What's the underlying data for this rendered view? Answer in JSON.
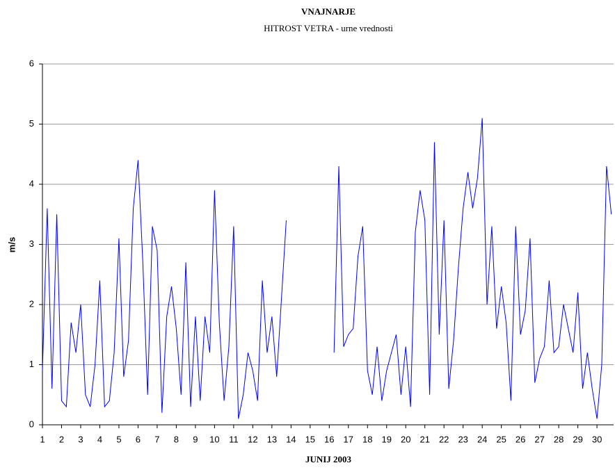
{
  "chart_data": {
    "type": "line",
    "title": "VNAJNARJE",
    "subtitle": "HITROST VETRA - urne vrednosti",
    "y_label": "m/s",
    "x_label": "JUNIJ 2003",
    "color": "#0000ff",
    "grid": true,
    "xlim": [
      1,
      30.87
    ],
    "ylim": [
      0,
      6
    ],
    "xticks": [
      1,
      2,
      3,
      4,
      5,
      6,
      7,
      8,
      9,
      10,
      11,
      12,
      13,
      14,
      15,
      16,
      17,
      18,
      19,
      20,
      21,
      22,
      23,
      24,
      25,
      26,
      27,
      28,
      29,
      30
    ],
    "yticks": [
      0,
      1,
      2,
      3,
      4,
      5,
      6
    ],
    "x": [
      1,
      1.25,
      1.5,
      1.75,
      2,
      2.25,
      2.5,
      2.75,
      3,
      3.25,
      3.5,
      3.75,
      4,
      4.25,
      4.5,
      4.75,
      5,
      5.25,
      5.5,
      5.75,
      6,
      6.25,
      6.5,
      6.75,
      7,
      7.25,
      7.5,
      7.75,
      8,
      8.25,
      8.5,
      8.75,
      9,
      9.25,
      9.5,
      9.75,
      10,
      10.25,
      10.5,
      10.75,
      11,
      11.25,
      11.5,
      11.75,
      12,
      12.25,
      12.5,
      12.75,
      13,
      13.25,
      13.5,
      13.75,
      14,
      14.25,
      14.5,
      14.75,
      15,
      15.25,
      15.5,
      15.75,
      16,
      16.25,
      16.5,
      16.75,
      17,
      17.25,
      17.5,
      17.75,
      18,
      18.25,
      18.5,
      18.75,
      19,
      19.25,
      19.5,
      19.75,
      20,
      20.25,
      20.5,
      20.75,
      21,
      21.25,
      21.5,
      21.75,
      22,
      22.25,
      22.5,
      22.75,
      23,
      23.25,
      23.5,
      23.75,
      24,
      24.25,
      24.5,
      24.75,
      25,
      25.25,
      25.5,
      25.75,
      26,
      26.25,
      26.5,
      26.75,
      27,
      27.25,
      27.5,
      27.75,
      28,
      28.25,
      28.5,
      28.75,
      29,
      29.25,
      29.5,
      29.75,
      30,
      30.25,
      30.5,
      30.75
    ],
    "values": [
      0.9,
      3.6,
      0.6,
      3.5,
      0.4,
      0.3,
      1.7,
      1.2,
      2.0,
      0.5,
      0.3,
      1.0,
      2.4,
      0.3,
      0.4,
      1.2,
      3.1,
      0.8,
      1.4,
      3.6,
      4.4,
      2.7,
      0.5,
      3.3,
      2.9,
      0.2,
      1.8,
      2.3,
      1.6,
      0.5,
      2.7,
      0.3,
      1.8,
      0.4,
      1.8,
      1.2,
      3.9,
      1.7,
      0.4,
      1.3,
      3.3,
      0.1,
      0.5,
      1.2,
      0.9,
      0.4,
      2.4,
      1.2,
      1.8,
      0.8,
      2.1,
      3.4,
      null,
      null,
      null,
      null,
      null,
      null,
      null,
      null,
      null,
      1.2,
      4.3,
      1.3,
      1.5,
      1.6,
      2.8,
      3.3,
      0.9,
      0.5,
      1.3,
      0.4,
      0.9,
      1.2,
      1.5,
      0.5,
      1.3,
      0.3,
      3.2,
      3.9,
      3.4,
      0.5,
      4.7,
      1.5,
      3.4,
      0.6,
      1.4,
      2.6,
      3.6,
      4.2,
      3.6,
      4.1,
      5.1,
      2.0,
      3.3,
      1.6,
      2.3,
      1.7,
      0.4,
      3.3,
      1.5,
      1.9,
      3.1,
      0.7,
      1.1,
      1.3,
      2.4,
      1.2,
      1.3,
      2.0,
      1.6,
      1.2,
      2.2,
      0.6,
      1.2,
      0.6,
      0.1,
      1.0,
      4.3,
      3.5
    ]
  }
}
